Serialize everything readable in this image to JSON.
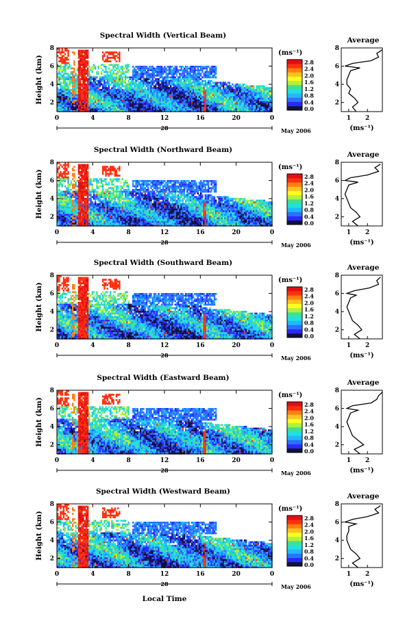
{
  "figure": {
    "xlabel": "Local Time"
  },
  "colorbar": {
    "unit_label": "(ms⁻¹)",
    "tick_labels": [
      "2.8",
      "2.4",
      "2.0",
      "1.6",
      "1.2",
      "0.8",
      "0.4",
      "0.0"
    ],
    "colors": [
      "#111144",
      "#2a2aff",
      "#2a72ff",
      "#20b8ff",
      "#20e0e0",
      "#40e090",
      "#b0f040",
      "#ffff20",
      "#ffc020",
      "#ff8010",
      "#ff3010",
      "#e01010"
    ]
  },
  "chart_data": [
    {
      "type": "heatmap",
      "title": "Spectral Width (Vertical Beam)",
      "ylabel": "Height (km)",
      "xlabel": "",
      "x_ticks": [
        "0",
        "4",
        "8",
        "12",
        "16",
        "20",
        "0"
      ],
      "date_label": "28",
      "date_suffix": "May 2006",
      "ylim": [
        1,
        8
      ],
      "y_ticks": [
        "2",
        "4",
        "6",
        "8"
      ],
      "xlim_hours": [
        0,
        24
      ],
      "clim": [
        0.0,
        2.8
      ],
      "average_profile": {
        "title": "Average",
        "x_ticks": [
          "1",
          "2"
        ],
        "xlabel": "(ms⁻¹)",
        "xlim": [
          0.6,
          2.8
        ],
        "heights_km": [
          1.0,
          1.5,
          2.0,
          2.5,
          3.0,
          3.5,
          4.0,
          4.5,
          5.0,
          5.5,
          5.8,
          6.0,
          6.3,
          6.6,
          7.0,
          7.4,
          7.8
        ],
        "values": [
          1.4,
          1.2,
          1.5,
          1.3,
          1.0,
          1.1,
          0.9,
          0.9,
          1.0,
          1.1,
          1.6,
          0.8,
          1.2,
          2.2,
          2.6,
          2.5,
          2.8
        ]
      }
    },
    {
      "type": "heatmap",
      "title": "Spectral Width (Northward Beam)",
      "ylabel": "Height (km)",
      "xlabel": "",
      "x_ticks": [
        "0",
        "4",
        "8",
        "12",
        "16",
        "20",
        "0"
      ],
      "date_label": "28",
      "date_suffix": "May 2006",
      "ylim": [
        1,
        8
      ],
      "y_ticks": [
        "2",
        "4",
        "6",
        "8"
      ],
      "xlim_hours": [
        0,
        24
      ],
      "clim": [
        0.0,
        2.8
      ],
      "average_profile": {
        "title": "Average",
        "x_ticks": [
          "1",
          "2"
        ],
        "xlabel": "(ms⁻¹)",
        "xlim": [
          0.6,
          2.8
        ],
        "heights_km": [
          1.0,
          1.5,
          2.0,
          2.5,
          3.0,
          3.5,
          4.0,
          4.5,
          5.0,
          5.5,
          5.8,
          6.0,
          6.3,
          6.6,
          7.0,
          7.4,
          7.8
        ],
        "values": [
          1.5,
          1.2,
          1.6,
          1.4,
          1.1,
          1.0,
          0.9,
          0.8,
          0.9,
          1.0,
          1.5,
          0.8,
          1.1,
          2.0,
          2.6,
          2.4,
          2.7
        ]
      }
    },
    {
      "type": "heatmap",
      "title": "Spectral Width (Southward Beam)",
      "ylabel": "Height (km)",
      "xlabel": "",
      "x_ticks": [
        "0",
        "4",
        "8",
        "12",
        "16",
        "20",
        "0"
      ],
      "date_label": "28",
      "date_suffix": "May 2006",
      "ylim": [
        1,
        8
      ],
      "y_ticks": [
        "2",
        "4",
        "6",
        "8"
      ],
      "xlim_hours": [
        0,
        24
      ],
      "clim": [
        0.0,
        2.8
      ],
      "average_profile": {
        "title": "Average",
        "x_ticks": [
          "1",
          "2"
        ],
        "xlabel": "(ms⁻¹)",
        "xlim": [
          0.6,
          2.8
        ],
        "heights_km": [
          1.0,
          1.5,
          2.0,
          2.5,
          3.0,
          3.5,
          4.0,
          4.5,
          5.0,
          5.5,
          5.8,
          6.0,
          6.3,
          6.6,
          7.0,
          7.4,
          7.8
        ],
        "values": [
          1.6,
          1.3,
          1.7,
          1.5,
          1.2,
          1.1,
          1.0,
          0.9,
          1.0,
          1.1,
          1.4,
          0.9,
          1.3,
          2.1,
          2.6,
          2.5,
          2.7
        ]
      }
    },
    {
      "type": "heatmap",
      "title": "Spectral Width (Eastward Beam)",
      "ylabel": "Height (km)",
      "xlabel": "",
      "x_ticks": [
        "0",
        "4",
        "8",
        "12",
        "16",
        "20",
        "0"
      ],
      "date_label": "28",
      "date_suffix": "May 2006",
      "ylim": [
        1,
        8
      ],
      "y_ticks": [
        "2",
        "4",
        "6",
        "8"
      ],
      "xlim_hours": [
        0,
        24
      ],
      "clim": [
        0.0,
        2.8
      ],
      "average_profile": {
        "title": "Average",
        "x_ticks": [
          "1",
          "2"
        ],
        "xlabel": "(ms⁻¹)",
        "xlim": [
          0.6,
          2.8
        ],
        "heights_km": [
          1.0,
          1.5,
          2.0,
          2.5,
          3.0,
          3.5,
          4.0,
          4.5,
          5.0,
          5.5,
          5.8,
          6.0,
          6.3,
          6.6,
          7.0,
          7.4,
          7.8
        ],
        "values": [
          1.6,
          1.3,
          1.8,
          1.5,
          1.2,
          1.1,
          1.0,
          0.9,
          1.0,
          1.1,
          1.5,
          0.9,
          1.2,
          2.2,
          2.5,
          2.6,
          2.8
        ]
      }
    },
    {
      "type": "heatmap",
      "title": "Spectral Width (Westward Beam)",
      "ylabel": "Height (km)",
      "xlabel": "",
      "x_ticks": [
        "0",
        "4",
        "8",
        "12",
        "16",
        "20",
        "0"
      ],
      "date_label": "28",
      "date_suffix": "May 2006",
      "ylim": [
        1,
        8
      ],
      "y_ticks": [
        "2",
        "4",
        "6",
        "8"
      ],
      "xlim_hours": [
        0,
        24
      ],
      "clim": [
        0.0,
        2.8
      ],
      "average_profile": {
        "title": "Average",
        "x_ticks": [
          "1",
          "2"
        ],
        "xlabel": "(ms⁻¹)",
        "xlim": [
          0.6,
          2.8
        ],
        "heights_km": [
          1.0,
          1.5,
          2.0,
          2.5,
          3.0,
          3.5,
          4.0,
          4.5,
          5.0,
          5.5,
          5.8,
          6.0,
          6.3,
          6.6,
          7.0,
          7.4,
          7.8
        ],
        "values": [
          1.5,
          1.2,
          1.6,
          1.4,
          1.1,
          1.0,
          0.9,
          0.9,
          1.0,
          1.0,
          1.4,
          0.8,
          1.2,
          2.0,
          2.6,
          2.4,
          2.7
        ]
      }
    }
  ]
}
